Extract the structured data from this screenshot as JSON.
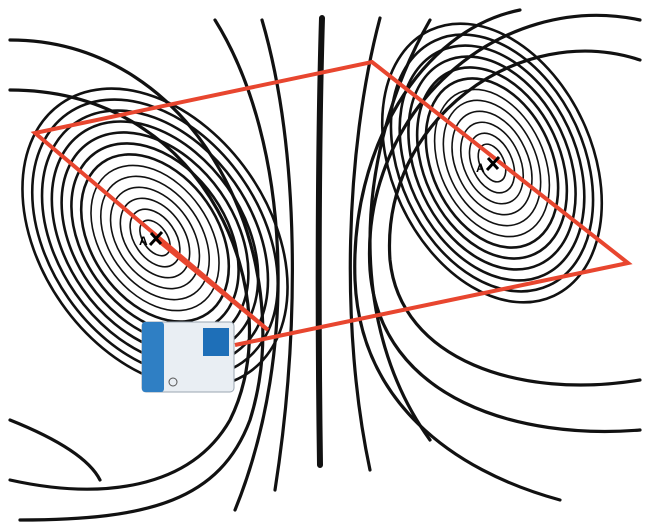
{
  "labels": {
    "point_left": "A",
    "point_right": "A"
  }
}
